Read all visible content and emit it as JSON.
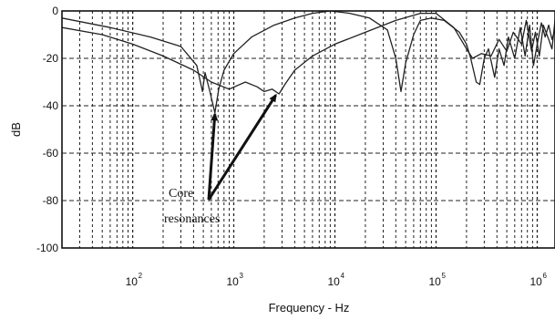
{
  "chart_data": {
    "type": "line",
    "title": "",
    "xlabel": "Frequency - Hz",
    "ylabel": "dB",
    "xscale": "log",
    "xlim": [
      20,
      1500000
    ],
    "ylim": [
      -100,
      0
    ],
    "grid": true,
    "y_ticks": [
      {
        "value": 0,
        "label": "0"
      },
      {
        "value": -20,
        "label": "-20"
      },
      {
        "value": -40,
        "label": "-40"
      },
      {
        "value": -60,
        "label": "-60"
      },
      {
        "value": -80,
        "label": "-80"
      },
      {
        "value": -100,
        "label": "-100"
      }
    ],
    "x_ticks": [
      {
        "value": 100,
        "base": "10",
        "exp": "2"
      },
      {
        "value": 1000,
        "base": "10",
        "exp": "3"
      },
      {
        "value": 10000,
        "base": "10",
        "exp": "4"
      },
      {
        "value": 100000,
        "base": "10",
        "exp": "5"
      },
      {
        "value": 1000000,
        "base": "10",
        "exp": "6"
      }
    ],
    "series": [
      {
        "points": [
          [
            20,
            -3
          ],
          [
            60,
            -7
          ],
          [
            150,
            -11
          ],
          [
            300,
            -15
          ],
          [
            430,
            -23
          ],
          [
            490,
            -34
          ],
          [
            520,
            -26
          ],
          [
            580,
            -34
          ],
          [
            650,
            -43
          ],
          [
            710,
            -33
          ],
          [
            800,
            -25
          ],
          [
            1000,
            -18
          ],
          [
            1500,
            -11
          ],
          [
            2500,
            -6
          ],
          [
            4000,
            -3
          ],
          [
            6000,
            -1
          ],
          [
            9000,
            0
          ],
          [
            14000,
            -1
          ],
          [
            22000,
            -3
          ],
          [
            33000,
            -8
          ],
          [
            40000,
            -20
          ],
          [
            45000,
            -34
          ],
          [
            50000,
            -22
          ],
          [
            60000,
            -10
          ],
          [
            70000,
            -4
          ],
          [
            90000,
            -3
          ],
          [
            120000,
            -4
          ],
          [
            170000,
            -9
          ],
          [
            200000,
            -14
          ],
          [
            220000,
            -20
          ],
          [
            250000,
            -30
          ],
          [
            270000,
            -31
          ],
          [
            300000,
            -20
          ],
          [
            330000,
            -16
          ],
          [
            380000,
            -28
          ],
          [
            420000,
            -16
          ],
          [
            470000,
            -23
          ],
          [
            520000,
            -11
          ],
          [
            600000,
            -20
          ],
          [
            680000,
            -7
          ],
          [
            760000,
            -19
          ],
          [
            840000,
            -6
          ],
          [
            920000,
            -23
          ],
          [
            1000000,
            -14
          ],
          [
            1100000,
            -5
          ],
          [
            1200000,
            -11
          ],
          [
            1300000,
            -6
          ],
          [
            1400000,
            -12
          ],
          [
            1500000,
            -8
          ]
        ]
      },
      {
        "points": [
          [
            20,
            -7
          ],
          [
            50,
            -10
          ],
          [
            100,
            -14
          ],
          [
            200,
            -19
          ],
          [
            400,
            -25
          ],
          [
            600,
            -30
          ],
          [
            900,
            -33
          ],
          [
            1300,
            -30
          ],
          [
            1700,
            -32
          ],
          [
            2000,
            -34
          ],
          [
            2400,
            -33
          ],
          [
            2800,
            -35
          ],
          [
            3200,
            -31
          ],
          [
            4000,
            -25
          ],
          [
            6000,
            -19
          ],
          [
            10000,
            -14
          ],
          [
            20000,
            -9
          ],
          [
            40000,
            -4
          ],
          [
            70000,
            -1
          ],
          [
            100000,
            -1
          ],
          [
            150000,
            -7
          ],
          [
            200000,
            -16
          ],
          [
            230000,
            -20
          ],
          [
            280000,
            -18
          ],
          [
            350000,
            -19
          ],
          [
            420000,
            -12
          ],
          [
            500000,
            -17
          ],
          [
            580000,
            -9
          ],
          [
            700000,
            -14
          ],
          [
            780000,
            -4
          ],
          [
            880000,
            -17
          ],
          [
            960000,
            -9
          ],
          [
            1050000,
            -19
          ],
          [
            1150000,
            -6
          ],
          [
            1300000,
            -12
          ],
          [
            1400000,
            -16
          ],
          [
            1500000,
            -4
          ]
        ]
      }
    ],
    "annotations": {
      "lines": [
        "Core",
        "resonances"
      ],
      "arrow_targets": [
        [
          650,
          -42
        ],
        [
          2600,
          -34
        ]
      ]
    }
  }
}
